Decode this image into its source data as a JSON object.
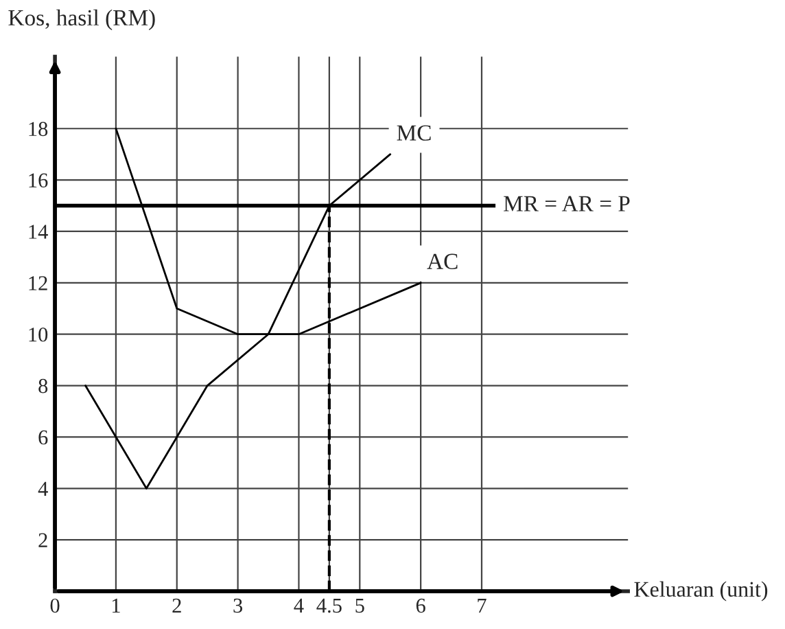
{
  "chart_data": {
    "type": "line",
    "xlabel": "Keluaran (unit)",
    "ylabel": "Kos, hasil (RM)",
    "xlim": [
      0,
      9.4
    ],
    "ylim": [
      0,
      20.8
    ],
    "xticks": [
      0,
      1,
      2,
      3,
      4,
      4.5,
      5,
      6,
      7
    ],
    "yticks": [
      {
        "value": 0,
        "label": null
      },
      2,
      4,
      6,
      8,
      10,
      12,
      14,
      16,
      18
    ],
    "grid": true,
    "marker": "none",
    "series": [
      {
        "name": "MC",
        "color": "#000000",
        "x": [
          0.5,
          1.5,
          2.5,
          3.5,
          4.5,
          5.5
        ],
        "values": [
          8,
          4,
          8,
          10,
          15,
          17
        ]
      },
      {
        "name": "AC",
        "color": "#000000",
        "x": [
          1,
          2,
          3,
          4,
          6
        ],
        "values": [
          18,
          11,
          10,
          10,
          12
        ]
      },
      {
        "color": "#000000",
        "x": [
          4.5,
          4.5
        ],
        "values": [
          0,
          15
        ],
        "line_style": "dashed"
      }
    ],
    "ref_lines": [
      {
        "axis": "y",
        "value": 15,
        "label": "MR = AR = P",
        "color": "#000000"
      }
    ]
  }
}
